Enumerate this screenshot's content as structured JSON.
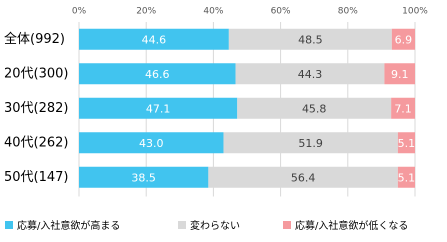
{
  "chart_data": {
    "type": "stacked-bar-horizontal",
    "categories": [
      "全体(992)",
      "20代(300)",
      "30代(282)",
      "40代(262)",
      "50代(147)"
    ],
    "series": [
      {
        "name": "応募/入社意欲が高まる",
        "color": "#41c4ef",
        "values": [
          44.6,
          46.6,
          47.1,
          43.0,
          38.5
        ],
        "value_labels": [
          "44.6",
          "46.6",
          "47.1",
          "43.0",
          "38.5"
        ]
      },
      {
        "name": "変わらない",
        "color": "#d9d9d9",
        "values": [
          48.5,
          44.3,
          45.8,
          51.9,
          56.4
        ],
        "value_labels": [
          "48.5",
          "44.3",
          "45.8",
          "51.9",
          "56.4"
        ]
      },
      {
        "name": "応募/入社意欲が低くなる",
        "color": "#f59a9e",
        "values": [
          6.9,
          9.1,
          7.1,
          5.1,
          5.1
        ],
        "value_labels": [
          "6.9",
          "9.1",
          "7.1",
          "5.1",
          "5.1"
        ]
      }
    ],
    "xlim": [
      0,
      100
    ],
    "xticks": [
      {
        "value": 0,
        "label": "0%"
      },
      {
        "value": 20,
        "label": "20%"
      },
      {
        "value": 40,
        "label": "40%"
      },
      {
        "value": 60,
        "label": "60%"
      },
      {
        "value": 80,
        "label": "80%"
      },
      {
        "value": 100,
        "label": "100%"
      }
    ],
    "grid": true,
    "legend": "bottom"
  }
}
